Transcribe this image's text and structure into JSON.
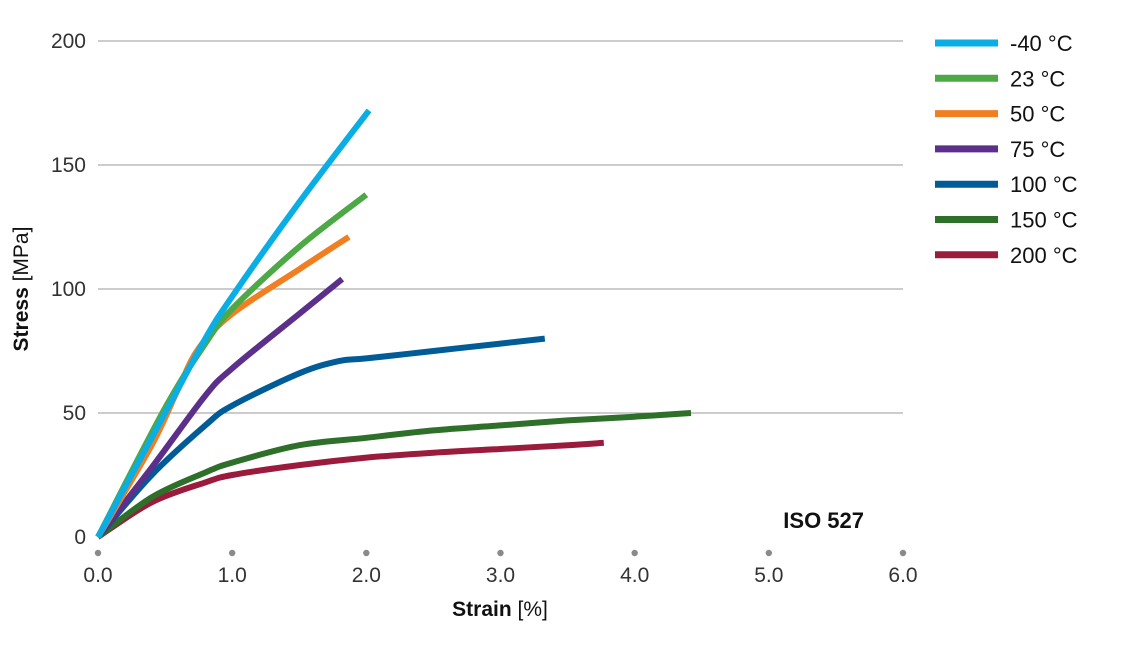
{
  "chart_data": {
    "type": "line",
    "xlabel": {
      "main": "Strain",
      "unit": "[%]"
    },
    "ylabel": {
      "main": "Stress",
      "unit": "[MPa]"
    },
    "xlim": [
      0,
      6
    ],
    "ylim": [
      0,
      200
    ],
    "xticks": [
      0,
      1,
      2,
      3,
      4,
      5,
      6
    ],
    "xtick_labels": [
      "0.0",
      "1.0",
      "2.0",
      "3.0",
      "4.0",
      "5.0",
      "6.0"
    ],
    "yticks": [
      0,
      50,
      100,
      150,
      200
    ],
    "ytick_labels": [
      "0",
      "50",
      "100",
      "150",
      "200"
    ],
    "grid": "horizontal",
    "legend_position": "right",
    "annotation": "ISO 527",
    "series": [
      {
        "name": "-40 °C",
        "color": "#0AADE4",
        "points": [
          [
            0,
            0
          ],
          [
            0.5,
            50
          ],
          [
            0.8,
            80
          ],
          [
            1.0,
            97
          ],
          [
            1.5,
            135
          ],
          [
            2.02,
            172
          ]
        ]
      },
      {
        "name": "23 °C",
        "color": "#4DA846",
        "points": [
          [
            0,
            0
          ],
          [
            0.5,
            52
          ],
          [
            0.8,
            78
          ],
          [
            1.0,
            92
          ],
          [
            1.5,
            117
          ],
          [
            2.0,
            138
          ]
        ]
      },
      {
        "name": "50 °C",
        "color": "#F07F22",
        "points": [
          [
            0,
            0
          ],
          [
            0.4,
            37
          ],
          [
            0.6,
            60
          ],
          [
            0.75,
            76
          ],
          [
            1.0,
            90
          ],
          [
            1.5,
            108
          ],
          [
            1.87,
            121
          ]
        ]
      },
      {
        "name": "75 °C",
        "color": "#5B2F8A",
        "points": [
          [
            0,
            0
          ],
          [
            0.4,
            28
          ],
          [
            0.8,
            57
          ],
          [
            1.0,
            68
          ],
          [
            1.5,
            90
          ],
          [
            1.82,
            104
          ]
        ]
      },
      {
        "name": "100 °C",
        "color": "#005C96",
        "points": [
          [
            0,
            0
          ],
          [
            0.4,
            25
          ],
          [
            0.8,
            45
          ],
          [
            1.0,
            53
          ],
          [
            1.5,
            66
          ],
          [
            1.8,
            71
          ],
          [
            2.0,
            72
          ],
          [
            2.5,
            75
          ],
          [
            3.0,
            78
          ],
          [
            3.33,
            80
          ]
        ]
      },
      {
        "name": "150 °C",
        "color": "#2E6F2A",
        "points": [
          [
            0,
            0
          ],
          [
            0.4,
            16
          ],
          [
            0.8,
            26
          ],
          [
            1.0,
            30
          ],
          [
            1.5,
            37
          ],
          [
            2.0,
            40
          ],
          [
            2.5,
            43
          ],
          [
            3.0,
            45
          ],
          [
            3.5,
            47
          ],
          [
            4.0,
            48.5
          ],
          [
            4.42,
            50
          ]
        ]
      },
      {
        "name": "200 °C",
        "color": "#9B1B3C",
        "points": [
          [
            0,
            0
          ],
          [
            0.4,
            14
          ],
          [
            0.8,
            22
          ],
          [
            1.0,
            25
          ],
          [
            1.5,
            29
          ],
          [
            2.0,
            32
          ],
          [
            2.5,
            34
          ],
          [
            3.0,
            35.5
          ],
          [
            3.5,
            37
          ],
          [
            3.77,
            38
          ]
        ]
      }
    ]
  }
}
